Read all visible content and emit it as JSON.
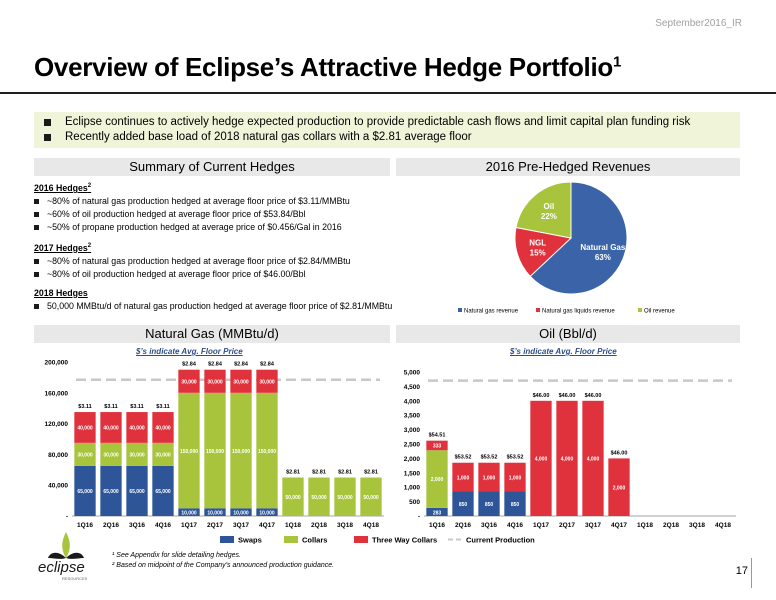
{
  "header": {
    "tag": "September2016_IR",
    "title": "Overview of Eclipse’s Attractive Hedge Portfolio",
    "title_sup": "1"
  },
  "bullets": [
    "Eclipse continues to actively hedge expected production to provide predictable cash flows and limit capital plan funding risk",
    "Recently added base load of 2018 natural gas collars with a $2.81 average floor"
  ],
  "sections": {
    "summary": "Summary of Current Hedges",
    "revenues": "2016 Pre-Hedged Revenues",
    "gas": "Natural Gas (MMBtu/d)",
    "oil": "Oil (Bbl/d)"
  },
  "hedges": {
    "h2016": {
      "title": "2016 Hedges",
      "sup": "2",
      "items": [
        "~80% of natural gas production hedged at average floor price of $3.11/MMBtu",
        "~60% of oil production hedged at average floor price of $53.84/Bbl",
        "~50% of propane production hedged at average price of $0.456/Gal in 2016"
      ]
    },
    "h2017": {
      "title": "2017 Hedges",
      "sup": "2",
      "items": [
        "~80% of natural gas production hedged at average floor price of $2.84/MMBtu",
        "~80% of oil production hedged at average floor price of $46.00/Bbl"
      ]
    },
    "h2018": {
      "title": "2018 Hedges",
      "items": [
        "50,000 MMBtu/d of natural gas production hedged at average floor price of $2.81/MMBtu"
      ]
    }
  },
  "subtitle": "$’s indicate Avg. Floor Price",
  "legend": {
    "swaps": "Swaps",
    "collars": "Collars",
    "three_way": "Three Way Collars",
    "production": "Current Production"
  },
  "colors": {
    "swaps": "#2e5597",
    "collars": "#a8c43c",
    "three_way": "#e0323c",
    "production": "#c8c8c8",
    "pie_ng": "#3a63a8",
    "pie_ngl": "#e0323c",
    "pie_oil": "#a8c43c"
  },
  "chart_data": [
    {
      "type": "pie",
      "title": "2016 Pre-Hedged Revenues",
      "slices": [
        {
          "name": "Natural Gas",
          "label": "Natural Gas",
          "pct_label": "63%",
          "value": 63
        },
        {
          "name": "NGL",
          "label": "NGL",
          "pct_label": "15%",
          "value": 15
        },
        {
          "name": "Oil",
          "label": "Oil",
          "pct_label": "22%",
          "value": 22
        }
      ],
      "legend": [
        "Natural gas revenue",
        "Natural gas liquids revenue",
        "Oil revenue"
      ]
    },
    {
      "type": "bar",
      "stacked": true,
      "title": "Natural Gas (MMBtu/d)",
      "categories": [
        "1Q16",
        "2Q16",
        "3Q16",
        "4Q16",
        "1Q17",
        "2Q17",
        "3Q17",
        "4Q17",
        "1Q18",
        "2Q18",
        "3Q18",
        "4Q18"
      ],
      "ylim": [
        0,
        200000
      ],
      "yticks": [
        0,
        40000,
        80000,
        120000,
        160000,
        200000
      ],
      "ytick_labels": [
        "-",
        "40,000",
        "80,000",
        "120,000",
        "160,000",
        "200,000"
      ],
      "production": 177000,
      "series": [
        {
          "name": "Swaps",
          "values": [
            65000,
            65000,
            65000,
            65000,
            10000,
            10000,
            10000,
            10000,
            0,
            0,
            0,
            0
          ],
          "labels": [
            "65,000",
            "65,000",
            "65,000",
            "65,000",
            "10,000",
            "10,000",
            "10,000",
            "10,000",
            "",
            "",
            "",
            ""
          ]
        },
        {
          "name": "Collars",
          "values": [
            30000,
            30000,
            30000,
            30000,
            150000,
            150000,
            150000,
            150000,
            50000,
            50000,
            50000,
            50000
          ],
          "labels": [
            "30,000",
            "30,000",
            "30,000",
            "30,000",
            "150,000",
            "150,000",
            "150,000",
            "150,000",
            "50,000",
            "50,000",
            "50,000",
            "50,000"
          ]
        },
        {
          "name": "Three Way Collars",
          "values": [
            40000,
            40000,
            40000,
            40000,
            30000,
            30000,
            30000,
            30000,
            0,
            0,
            0,
            0
          ],
          "labels": [
            "40,000",
            "40,000",
            "40,000",
            "40,000",
            "30,000",
            "30,000",
            "30,000",
            "30,000",
            "",
            "",
            "",
            ""
          ]
        }
      ],
      "floor_labels": [
        "$3.11",
        "$3.11",
        "$3.11",
        "$3.11",
        "$2.84",
        "$2.84",
        "$2.84",
        "$2.84",
        "$2.81",
        "$2.81",
        "$2.81",
        "$2.81"
      ]
    },
    {
      "type": "bar",
      "stacked": true,
      "title": "Oil (Bbl/d)",
      "categories": [
        "1Q16",
        "2Q16",
        "3Q16",
        "4Q16",
        "1Q17",
        "2Q17",
        "3Q17",
        "4Q17",
        "1Q18",
        "2Q18",
        "3Q18",
        "4Q18"
      ],
      "ylim": [
        0,
        5000
      ],
      "yticks": [
        0,
        500,
        1000,
        1500,
        2000,
        2500,
        3000,
        3500,
        4000,
        4500,
        5000
      ],
      "ytick_labels": [
        "-",
        "500",
        "1,000",
        "1,500",
        "2,000",
        "2,500",
        "3,000",
        "3,500",
        "4,000",
        "4,500",
        "5,000"
      ],
      "production": 4700,
      "series": [
        {
          "name": "Swaps",
          "values": [
            283,
            850,
            850,
            850,
            0,
            0,
            0,
            0,
            0,
            0,
            0,
            0
          ],
          "labels": [
            "283",
            "850",
            "850",
            "850",
            "",
            "",
            "",
            "",
            "",
            "",
            "",
            ""
          ]
        },
        {
          "name": "Collars",
          "values": [
            2000,
            0,
            0,
            0,
            0,
            0,
            0,
            0,
            0,
            0,
            0,
            0
          ],
          "labels": [
            "2,000",
            "",
            "",
            "",
            "",
            "",
            "",
            "",
            "",
            "",
            "",
            ""
          ]
        },
        {
          "name": "Three Way Collars",
          "values": [
            333,
            1000,
            1000,
            1000,
            4000,
            4000,
            4000,
            2000,
            0,
            0,
            0,
            0
          ],
          "labels": [
            "333",
            "1,000",
            "1,000",
            "1,000",
            "4,000",
            "4,000",
            "4,000",
            "2,000",
            "",
            "",
            "",
            ""
          ]
        }
      ],
      "floor_labels": [
        "$54.51",
        "$53.52",
        "$53.52",
        "$53.52",
        "$46.00",
        "$46.00",
        "$46.00",
        "$46.00",
        "",
        "",
        "",
        ""
      ]
    }
  ],
  "footnotes": [
    "¹ See Appendix for slide detailing hedges.",
    "² Based on midpoint of the Company’s announced production guidance."
  ],
  "page_number": "17",
  "logo": {
    "text": "eclipse",
    "sub": "RESOURCES"
  }
}
